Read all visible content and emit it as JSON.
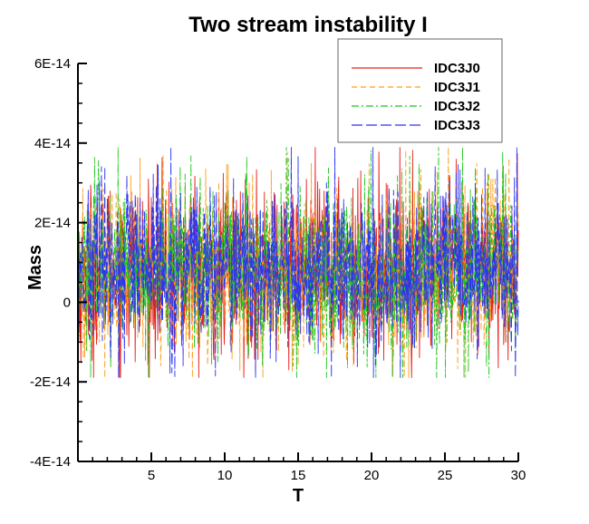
{
  "chart_data": {
    "type": "line",
    "title": "Two stream instability I",
    "xlabel": "T",
    "ylabel": "Mass",
    "xlim": [
      0,
      30
    ],
    "ylim": [
      -4e-14,
      6e-14
    ],
    "x_ticks": [
      5,
      10,
      15,
      20,
      25,
      30
    ],
    "x_tick_labels": [
      "5",
      "10",
      "15",
      "20",
      "25",
      "30"
    ],
    "y_ticks": [
      -4e-14,
      -2e-14,
      0,
      2e-14,
      4e-14,
      6e-14
    ],
    "y_tick_labels": [
      "-4E-14",
      "-2E-14",
      "0",
      "2E-14",
      "4E-14",
      "6E-14"
    ],
    "grid": false,
    "legend_position": "top-right",
    "noise_band": {
      "mean": 8e-15,
      "typical_min": -1e-14,
      "typical_max": 2.5e-14,
      "peak_min": -1.9e-14,
      "peak_max": 3.9e-14
    },
    "series": [
      {
        "name": "IDC3J0",
        "color": "#e8201c",
        "dash": "solid"
      },
      {
        "name": "IDC3J1",
        "color": "#ff9c1a",
        "dash": "dashed"
      },
      {
        "name": "IDC3J2",
        "color": "#1ec81e",
        "dash": "dashdot"
      },
      {
        "name": "IDC3J3",
        "color": "#2a36f0",
        "dash": "longdash"
      }
    ]
  }
}
